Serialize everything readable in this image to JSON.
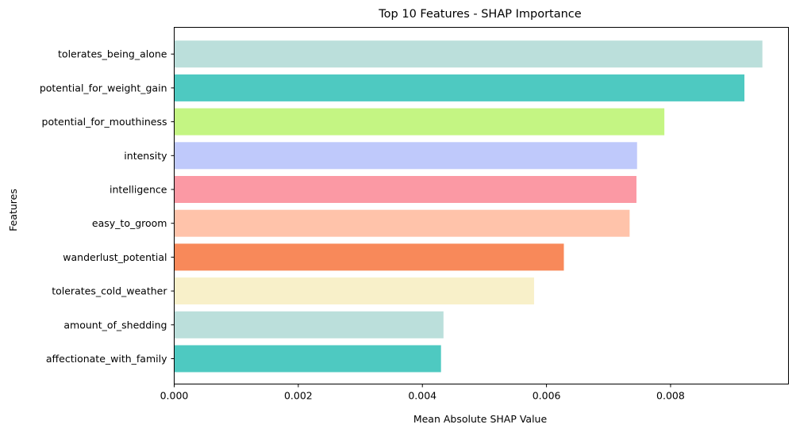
{
  "chart_data": {
    "type": "bar",
    "orientation": "horizontal",
    "title": "Top 10 Features - SHAP Importance",
    "xlabel": "Mean Absolute SHAP Value",
    "ylabel": "Features",
    "xlim": [
      0,
      0.0099
    ],
    "xticks": [
      "0.000",
      "0.002",
      "0.004",
      "0.006",
      "0.008"
    ],
    "xtick_values": [
      0,
      0.002,
      0.004,
      0.006,
      0.008
    ],
    "grid": false,
    "bars": [
      {
        "category": "tolerates_being_alone",
        "value": 0.00948,
        "color": "#bbdfdb"
      },
      {
        "category": "potential_for_weight_gain",
        "value": 0.00919,
        "color": "#4ec9c1"
      },
      {
        "category": "potential_for_mouthiness",
        "value": 0.0079,
        "color": "#c4f583"
      },
      {
        "category": "intensity",
        "value": 0.00746,
        "color": "#bfc9fb"
      },
      {
        "category": "intelligence",
        "value": 0.00745,
        "color": "#fb99a4"
      },
      {
        "category": "easy_to_groom",
        "value": 0.00734,
        "color": "#ffc3aa"
      },
      {
        "category": "wanderlust_potential",
        "value": 0.00628,
        "color": "#f8895a"
      },
      {
        "category": "tolerates_cold_weather",
        "value": 0.0058,
        "color": "#f8f0c9"
      },
      {
        "category": "amount_of_shedding",
        "value": 0.00434,
        "color": "#bbdfdb"
      },
      {
        "category": "affectionate_with_family",
        "value": 0.0043,
        "color": "#4ec9c1"
      }
    ]
  }
}
